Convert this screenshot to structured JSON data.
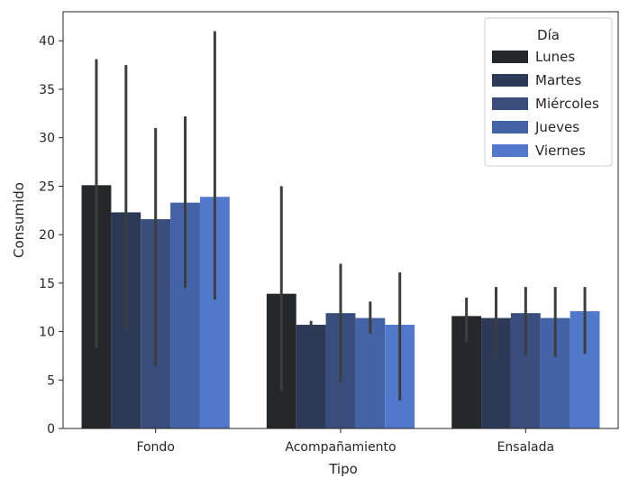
{
  "chart_data": {
    "type": "bar",
    "title": "",
    "xlabel": "Tipo",
    "ylabel": "Consumido",
    "categories": [
      "Fondo",
      "Acompañamiento",
      "Ensalada"
    ],
    "ylim": [
      0,
      43
    ],
    "yticks": [
      0,
      5,
      10,
      15,
      20,
      25,
      30,
      35,
      40
    ],
    "grid": false,
    "legend": {
      "title": "Día",
      "placement": "top-right"
    },
    "series": [
      {
        "name": "Lunes",
        "color": "#25272b",
        "values": [
          25.1,
          13.9,
          11.6
        ],
        "err_low": [
          8.3,
          3.9,
          8.9
        ],
        "err_high": [
          38.1,
          25.0,
          13.5
        ]
      },
      {
        "name": "Martes",
        "color": "#2c3a58",
        "values": [
          22.3,
          10.7,
          11.4
        ],
        "err_low": [
          10.3,
          10.2,
          7.5
        ],
        "err_high": [
          37.5,
          11.1,
          14.6
        ]
      },
      {
        "name": "Miércoles",
        "color": "#394e7d",
        "values": [
          21.6,
          11.9,
          11.9
        ],
        "err_low": [
          6.4,
          4.8,
          7.5
        ],
        "err_high": [
          31.0,
          17.0,
          14.6
        ]
      },
      {
        "name": "Jueves",
        "color": "#4363a6",
        "values": [
          23.3,
          11.4,
          11.4
        ],
        "err_low": [
          14.5,
          9.8,
          7.4
        ],
        "err_high": [
          32.2,
          13.1,
          14.6
        ]
      },
      {
        "name": "Viernes",
        "color": "#5178cb",
        "values": [
          23.9,
          10.7,
          12.1
        ],
        "err_low": [
          13.3,
          2.9,
          7.7
        ],
        "err_high": [
          41.0,
          16.1,
          14.6
        ]
      }
    ]
  }
}
